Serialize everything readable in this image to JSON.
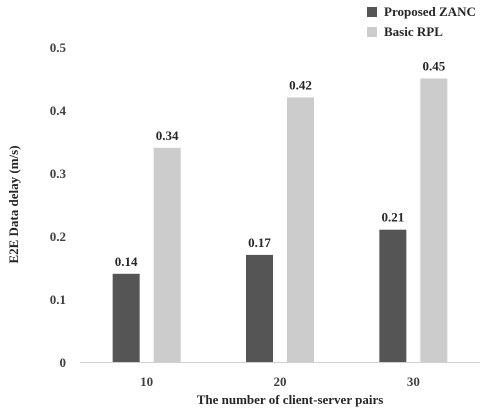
{
  "chart_data": {
    "type": "bar",
    "categories": [
      "10",
      "20",
      "30"
    ],
    "series": [
      {
        "name": "Proposed ZANC",
        "values": [
          0.14,
          0.17,
          0.21
        ],
        "color": "#555555"
      },
      {
        "name": "Basic RPL",
        "values": [
          0.34,
          0.42,
          0.45
        ],
        "color": "#cccccc"
      }
    ],
    "value_labels": [
      [
        "0.14",
        "0.17",
        "0.21"
      ],
      [
        "0.34",
        "0.42",
        "0.45"
      ]
    ],
    "title": "",
    "xlabel": "The number  of client-server pairs",
    "ylabel": "E2E Data delay (m/s)",
    "ylim": [
      0,
      0.5
    ],
    "yticks": [
      0,
      0.1,
      0.2,
      0.3,
      0.4,
      0.5
    ],
    "ytick_labels": [
      "0",
      "0.1",
      "0.2",
      "0.3",
      "0.4",
      "0.5"
    ],
    "grid": false,
    "legend_position": "top-right"
  }
}
